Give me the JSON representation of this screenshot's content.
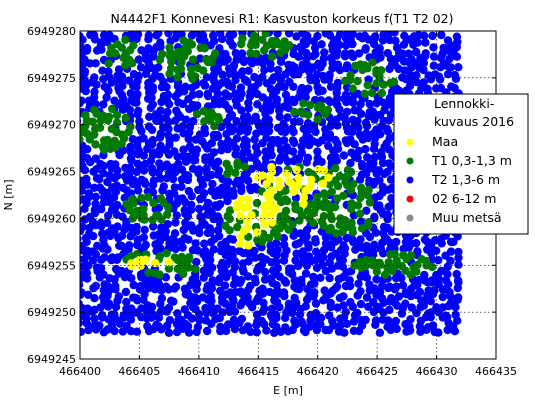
{
  "chart_data": {
    "type": "scatter",
    "title": "N4442F1 Konnevesi R1: Kasvuston korkeus f(T1 T2 02)",
    "xlabel": "E [m]",
    "ylabel": "N [m]",
    "xlim": [
      466400,
      466435
    ],
    "ylim": [
      6949245,
      6949280
    ],
    "xticks": [
      466400,
      466405,
      466410,
      466415,
      466420,
      466425,
      466430,
      466435
    ],
    "yticks": [
      6949245,
      6949250,
      6949255,
      6949260,
      6949265,
      6949270,
      6949275,
      6949280
    ],
    "grid": true,
    "point_extent": {
      "x": [
        466400,
        466432
      ],
      "y": [
        6949248,
        6949280
      ]
    },
    "legend": {
      "position": "right",
      "title": "Lennokki-\nkuvaus 2016",
      "entries": [
        {
          "label": "Maa",
          "color": "#ffff00"
        },
        {
          "label": "T1 0,3-1,3 m",
          "color": "#007a00"
        },
        {
          "label": "T2 1,3-6 m",
          "color": "#0000ff"
        },
        {
          "label": "02  6-12 m",
          "color": "#ff0000"
        },
        {
          "label": "Muu metsä",
          "color": "#8c8c8c"
        }
      ]
    },
    "series": [
      {
        "name": "Maa",
        "color": "#ffff00",
        "regions": [
          {
            "center": [
              466418.0,
              6949264.2
            ],
            "radius": [
              3.2,
              1.6
            ]
          },
          {
            "center": [
              466415.0,
              6949261.0
            ],
            "radius": [
              2.0,
              1.8
            ]
          },
          {
            "center": [
              466414.0,
              6949258.0
            ],
            "radius": [
              1.0,
              1.5
            ]
          },
          {
            "center": [
              466406.0,
              6949255.2
            ],
            "radius": [
              2.5,
              0.6
            ]
          },
          {
            "center": [
              466419.0,
              6949261.5
            ],
            "radius": [
              0.8,
              0.8
            ]
          }
        ]
      },
      {
        "name": "T1 0,3-1,3 m",
        "color": "#007a00",
        "regions": [
          {
            "center": [
              466402.0,
              6949269.5
            ],
            "radius": [
              2.4,
              2.4
            ]
          },
          {
            "center": [
              466409.0,
              6949277.0
            ],
            "radius": [
              2.6,
              2.2
            ]
          },
          {
            "center": [
              466403.5,
              6949277.5
            ],
            "radius": [
              1.5,
              1.6
            ]
          },
          {
            "center": [
              466415.5,
              6949278.5
            ],
            "radius": [
              2.5,
              1.3
            ]
          },
          {
            "center": [
              466424.5,
              6949275.0
            ],
            "radius": [
              2.4,
              1.8
            ]
          },
          {
            "center": [
              466419.5,
              6949271.5
            ],
            "radius": [
              1.8,
              1.2
            ]
          },
          {
            "center": [
              466410.5,
              6949270.5
            ],
            "radius": [
              1.3,
              1.2
            ]
          },
          {
            "center": [
              466420.0,
              6949262.5
            ],
            "radius": [
              4.8,
              3.2
            ]
          },
          {
            "center": [
              466415.0,
              6949260.0
            ],
            "radius": [
              3.0,
              2.6
            ]
          },
          {
            "center": [
              466405.5,
              6949261.0
            ],
            "radius": [
              2.2,
              1.8
            ]
          },
          {
            "center": [
              466407.0,
              6949255.2
            ],
            "radius": [
              3.5,
              1.3
            ]
          },
          {
            "center": [
              466426.5,
              6949255.0
            ],
            "radius": [
              3.5,
              1.2
            ]
          },
          {
            "center": [
              466422.5,
              6949259.5
            ],
            "radius": [
              2.2,
              1.3
            ]
          },
          {
            "center": [
              466413.0,
              6949265.5
            ],
            "radius": [
              1.2,
              1.0
            ]
          }
        ]
      },
      {
        "name": "T2 1,3-6 m",
        "color": "#0000ff",
        "fill": "background",
        "extent_x": [
          466400,
          466432
        ],
        "extent_y": [
          6949248,
          6949280
        ]
      },
      {
        "name": "02  6-12 m",
        "color": "#ff0000",
        "values": []
      },
      {
        "name": "Muu metsä",
        "color": "#8c8c8c",
        "values": []
      }
    ]
  }
}
